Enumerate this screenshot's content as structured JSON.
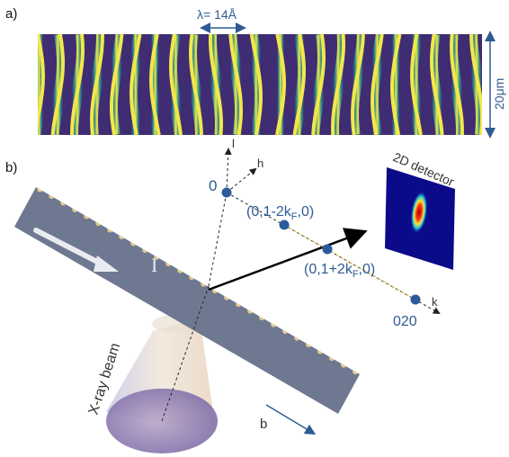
{
  "panel_a": {
    "letter": "a)",
    "wavelength_label": "λ= 14Å",
    "height_label": "20μm"
  },
  "panel_b": {
    "letter": "b)",
    "axis_l": "l",
    "axis_h": "h",
    "axis_k": "k",
    "origin_label": "0",
    "peak_minus": "(0,1-2k",
    "peak_minus_sub": "F",
    "peak_minus_tail": ",0)",
    "peak_plus": "(0,1+2k",
    "peak_plus_sub": "F",
    "peak_plus_tail": ",0)",
    "bragg_label": "020",
    "detector_label": "2D detector",
    "beam_label": "X-ray beam",
    "current_label": "I",
    "b_axis_label": "b"
  },
  "colors": {
    "accent_blue": "#2f5b93",
    "node_blue": "#2c5a9a",
    "wave_yellow": "#f0e44a",
    "wave_green": "#3fb08a",
    "wave_purple": "#402e74",
    "stripe_gold": "#e9c98b",
    "stripe_navy": "#4b5c8a"
  }
}
